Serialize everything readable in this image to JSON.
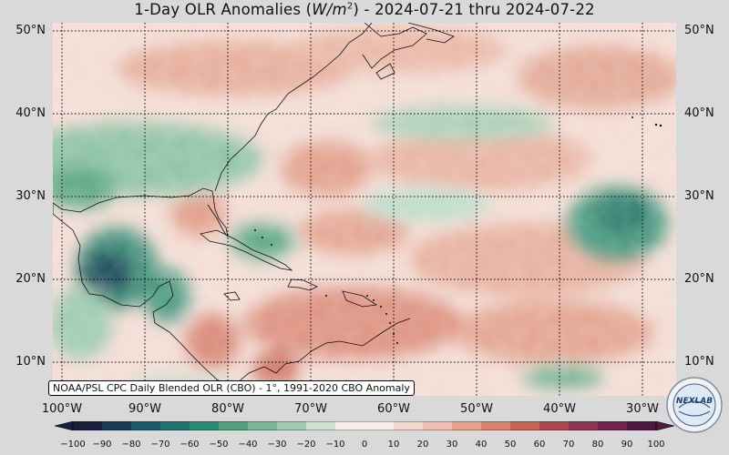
{
  "title": {
    "prefix": "1-Day OLR Anomalies (",
    "unit_base": "W/m",
    "unit_exp": "2",
    "suffix": ") - 2024-07-21 thru 2024-07-22"
  },
  "lat_labels": [
    "50°N",
    "40°N",
    "30°N",
    "20°N",
    "10°N"
  ],
  "lon_labels": [
    "100°W",
    "90°W",
    "80°W",
    "70°W",
    "60°W",
    "50°W",
    "40°W",
    "30°W"
  ],
  "credit": "NOAA/PSL CPC Daily Blended OLR (CBO) - 1°, 1991-2020 CBO Anomaly",
  "colorbar": {
    "ticks": [
      "−100",
      "−90",
      "−80",
      "−70",
      "−60",
      "−50",
      "−40",
      "−30",
      "−20",
      "−10",
      "0",
      "10",
      "20",
      "30",
      "40",
      "50",
      "60",
      "70",
      "80",
      "90",
      "100"
    ],
    "colors": [
      "#1a1f3d",
      "#1d3b56",
      "#1b5a66",
      "#1f736c",
      "#2a8a72",
      "#4fa07f",
      "#77b795",
      "#a2ccb1",
      "#cde3d3",
      "#f6eeea",
      "#f6eeea",
      "#f4d8cf",
      "#eebeaf",
      "#e4a18c",
      "#d6826d",
      "#c66256",
      "#ab4750",
      "#8e3550",
      "#6f254e",
      "#4e1a42"
    ]
  },
  "logo_text": "NEXLAB",
  "colors": {
    "background": "#d9d9d9",
    "ocean_base": "#f3ddd5"
  }
}
